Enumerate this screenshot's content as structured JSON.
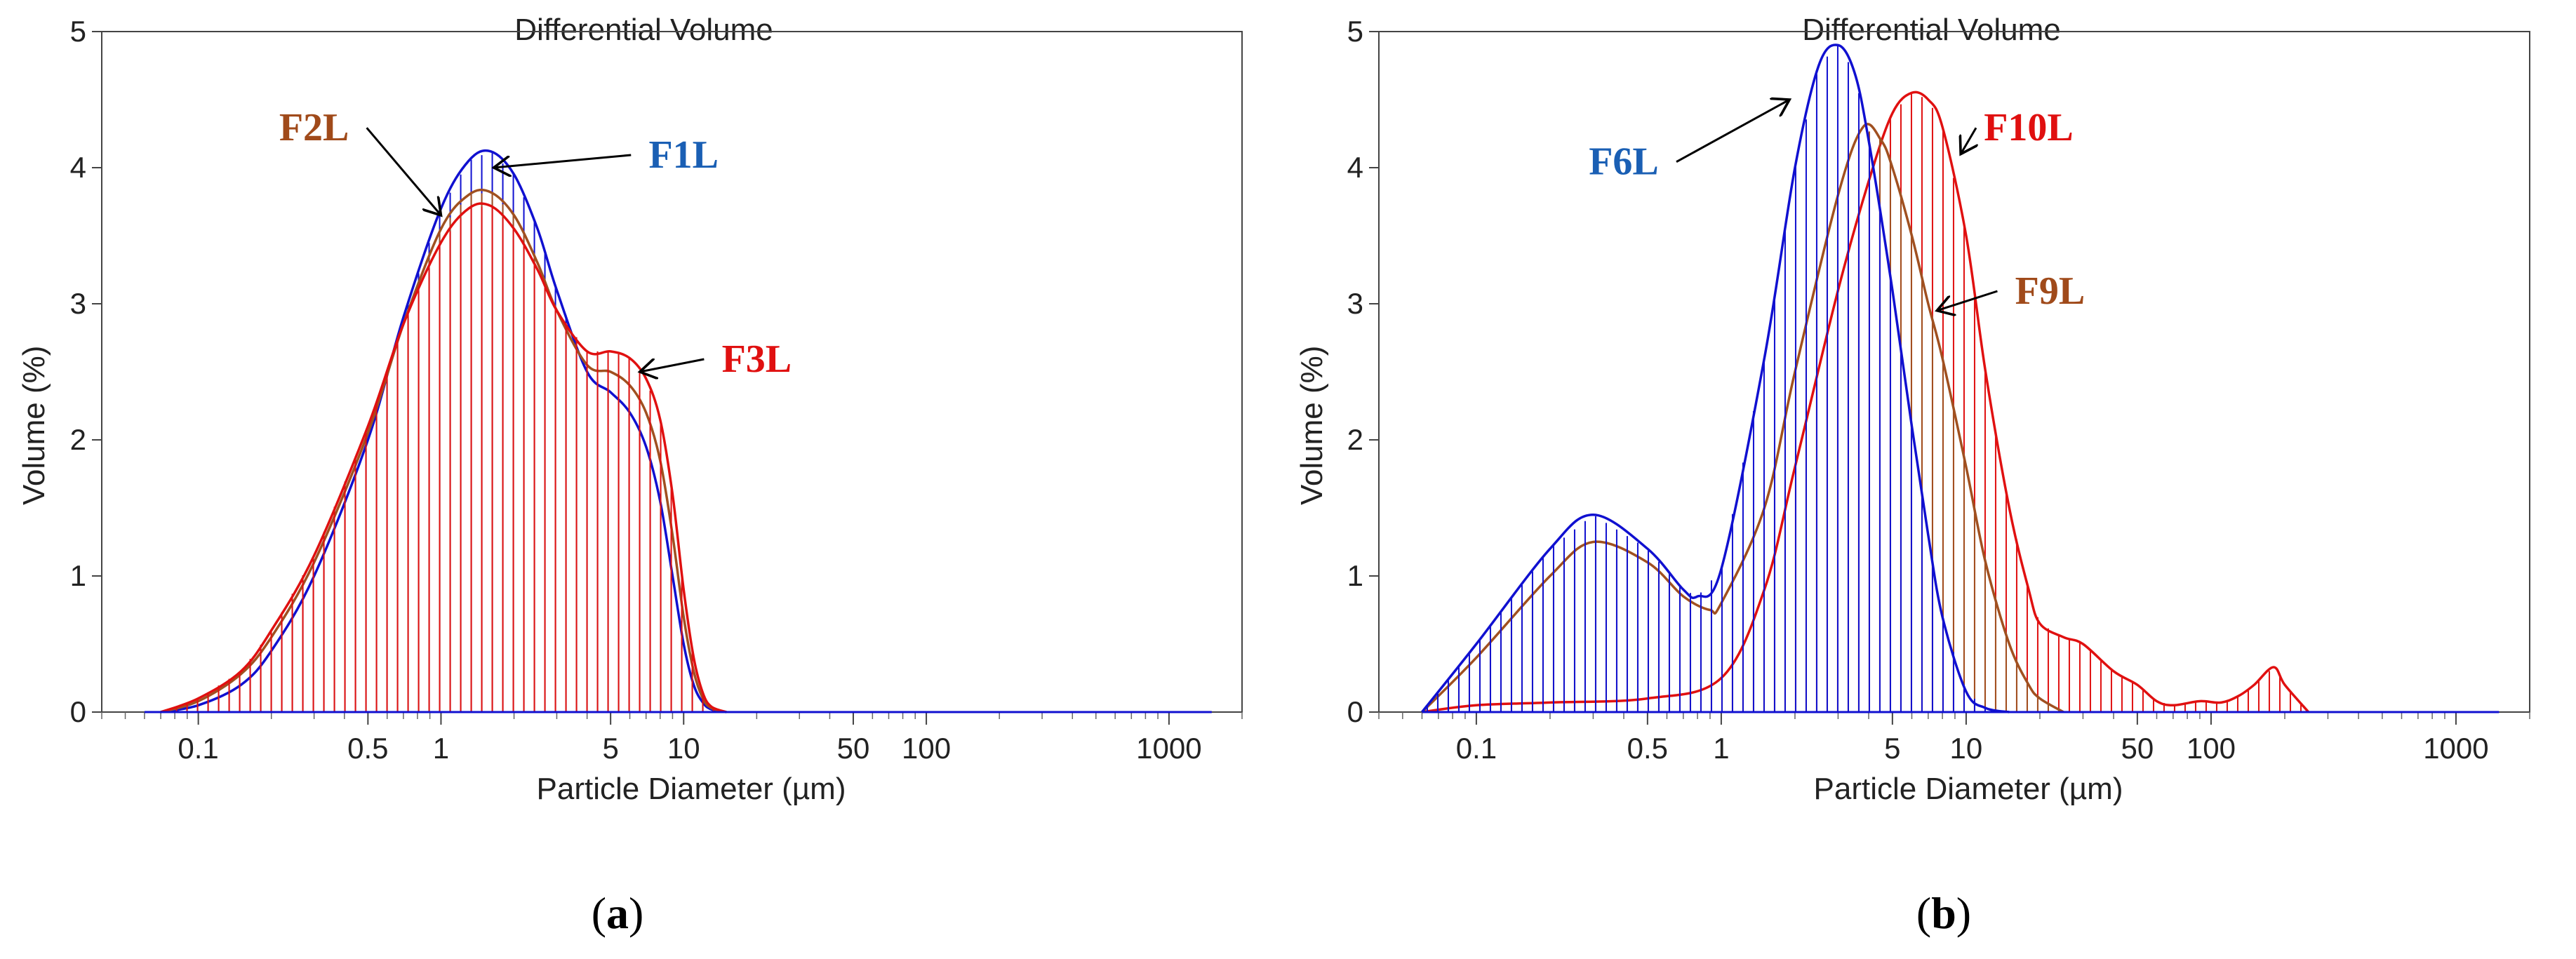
{
  "chart_data": [
    {
      "type": "area",
      "panel_label": "a",
      "title": "Differential Volume",
      "xlabel": "Particle Diameter (µm)",
      "ylabel": "Volume (%)",
      "x_scale": "log",
      "xlim": [
        0.04,
        2000
      ],
      "ylim": [
        0,
        5
      ],
      "x_ticks": [
        0.1,
        0.5,
        1,
        5,
        10,
        50,
        100,
        1000
      ],
      "x_tick_labels": [
        "0.1",
        "0.5",
        "1",
        "5",
        "10",
        "50",
        "100",
        "1000"
      ],
      "y_ticks": [
        0,
        1,
        2,
        3,
        4,
        5
      ],
      "grid": false,
      "series": [
        {
          "name": "F1L",
          "color": "#1010d0",
          "x": [
            0.07,
            0.1,
            0.15,
            0.2,
            0.3,
            0.5,
            0.7,
            1,
            1.3,
            1.6,
            2,
            2.5,
            3,
            4,
            5,
            6,
            7,
            8,
            9,
            10,
            11,
            12,
            13,
            15
          ],
          "y": [
            0,
            0.05,
            0.2,
            0.45,
            1.0,
            2.0,
            2.9,
            3.7,
            4.05,
            4.12,
            3.95,
            3.55,
            3.1,
            2.5,
            2.35,
            2.2,
            1.95,
            1.55,
            1.0,
            0.5,
            0.2,
            0.07,
            0.02,
            0
          ]
        },
        {
          "name": "F2L",
          "color": "#a05020",
          "x": [
            0.07,
            0.1,
            0.15,
            0.2,
            0.3,
            0.5,
            0.7,
            1,
            1.3,
            1.6,
            2,
            2.5,
            3,
            4,
            5,
            6,
            7,
            8,
            9,
            10,
            11,
            12,
            13,
            15
          ],
          "y": [
            0,
            0.08,
            0.28,
            0.55,
            1.1,
            2.05,
            2.85,
            3.55,
            3.8,
            3.82,
            3.65,
            3.3,
            2.95,
            2.55,
            2.5,
            2.4,
            2.2,
            1.85,
            1.3,
            0.7,
            0.3,
            0.1,
            0.03,
            0
          ]
        },
        {
          "name": "F3L",
          "color": "#e01010",
          "x": [
            0.07,
            0.1,
            0.15,
            0.2,
            0.3,
            0.5,
            0.7,
            1,
            1.3,
            1.6,
            2,
            2.5,
            3,
            4,
            5,
            6,
            7,
            8,
            9,
            10,
            11,
            12,
            13,
            15
          ],
          "y": [
            0,
            0.1,
            0.3,
            0.6,
            1.15,
            2.1,
            2.85,
            3.45,
            3.7,
            3.72,
            3.55,
            3.25,
            2.95,
            2.65,
            2.65,
            2.6,
            2.45,
            2.15,
            1.6,
            0.9,
            0.4,
            0.14,
            0.04,
            0
          ]
        }
      ],
      "annotations": [
        {
          "text": "F2L",
          "color": "#a04a1a",
          "x": 0.3,
          "y": 4.2,
          "point_x": 1.0,
          "point_y": 3.65
        },
        {
          "text": "F1L",
          "color": "#1a5fb4",
          "x": 10,
          "y": 4.0,
          "point_x": 1.65,
          "point_y": 4.0
        },
        {
          "text": "F3L",
          "color": "#e01010",
          "x": 20,
          "y": 2.5,
          "point_x": 6.6,
          "point_y": 2.5
        }
      ]
    },
    {
      "type": "area",
      "panel_label": "b",
      "title": "Differential Volume",
      "xlabel": "Particle Diameter (µm)",
      "ylabel": "Volume (%)",
      "x_scale": "log",
      "xlim": [
        0.04,
        2000
      ],
      "ylim": [
        0,
        5
      ],
      "x_ticks": [
        0.1,
        0.5,
        1,
        5,
        10,
        50,
        100,
        1000
      ],
      "x_tick_labels": [
        "0.1",
        "0.5",
        "1",
        "5",
        "10",
        "50",
        "100",
        "1000"
      ],
      "y_ticks": [
        0,
        1,
        2,
        3,
        4,
        5
      ],
      "grid": false,
      "series": [
        {
          "name": "F10L",
          "color": "#e01010",
          "x": [
            0.06,
            0.1,
            0.2,
            0.5,
            1,
            1.5,
            2,
            3,
            4,
            5,
            6,
            7,
            8,
            10,
            12,
            15,
            18,
            20,
            25,
            30,
            40,
            50,
            60,
            70,
            90,
            110,
            130,
            150,
            180,
            200,
            250
          ],
          "y": [
            0,
            0.05,
            0.07,
            0.1,
            0.25,
            0.9,
            1.8,
            3.1,
            3.9,
            4.4,
            4.55,
            4.5,
            4.3,
            3.5,
            2.5,
            1.5,
            0.9,
            0.65,
            0.55,
            0.5,
            0.3,
            0.2,
            0.08,
            0.05,
            0.08,
            0.07,
            0.12,
            0.2,
            0.33,
            0.2,
            0
          ]
        },
        {
          "name": "F9L",
          "color": "#a05020",
          "x": [
            0.06,
            0.1,
            0.2,
            0.3,
            0.5,
            0.7,
            0.9,
            1,
            1.5,
            2,
            3,
            3.8,
            4.5,
            5,
            6,
            7,
            8,
            10,
            12,
            15,
            18,
            20,
            25
          ],
          "y": [
            0,
            0.4,
            1.0,
            1.25,
            1.1,
            0.85,
            0.75,
            0.8,
            1.5,
            2.5,
            3.8,
            4.3,
            4.2,
            4.0,
            3.5,
            3.0,
            2.6,
            1.8,
            1.1,
            0.5,
            0.2,
            0.1,
            0
          ]
        },
        {
          "name": "F6L",
          "color": "#1010d0",
          "x": [
            0.06,
            0.1,
            0.2,
            0.3,
            0.5,
            0.7,
            0.8,
            1,
            1.5,
            2,
            2.5,
            3,
            3.5,
            4,
            5,
            6,
            7,
            8,
            10,
            12,
            15
          ],
          "y": [
            0,
            0.5,
            1.2,
            1.45,
            1.2,
            0.9,
            0.85,
            1.05,
            2.6,
            4.0,
            4.75,
            4.9,
            4.7,
            4.2,
            3.1,
            2.1,
            1.3,
            0.7,
            0.15,
            0.03,
            0
          ]
        }
      ],
      "annotations": [
        {
          "text": "F6L",
          "color": "#1a5fb4",
          "x": 0.4,
          "y": 3.95,
          "point_x": 1.9,
          "point_y": 4.5
        },
        {
          "text": "F10L",
          "color": "#e01010",
          "x": 18,
          "y": 4.2,
          "point_x": 9.5,
          "point_y": 4.1
        },
        {
          "text": "F9L",
          "color": "#a04a1a",
          "x": 22,
          "y": 3.0,
          "point_x": 7.6,
          "point_y": 2.95
        }
      ]
    }
  ]
}
